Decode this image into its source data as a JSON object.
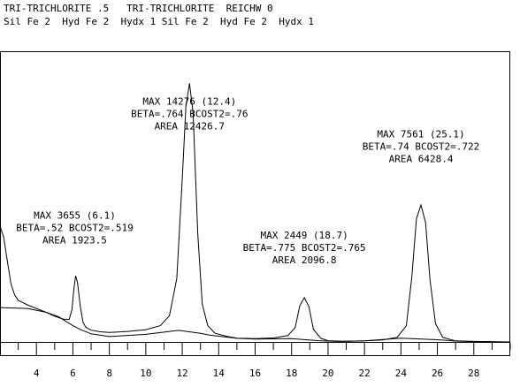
{
  "header": {
    "line1": "TRI-TRICHLORITE .5   TRI-TRICHLORITE  REICHW 0",
    "line2": "Sil Fe 2  Hyd Fe 2  Hydx 1 Sil Fe 2  Hyd Fe 2  Hydx 1"
  },
  "chart_data": {
    "type": "line",
    "xlim": [
      2,
      30
    ],
    "ylim": [
      0,
      16000
    ],
    "x_ticks": [
      4,
      6,
      8,
      10,
      12,
      14,
      16,
      18,
      20,
      22,
      24,
      26,
      28
    ],
    "grid": false,
    "series": [
      {
        "values": [
          [
            2.0,
            6400
          ],
          [
            2.2,
            5800
          ],
          [
            2.4,
            4500
          ],
          [
            2.6,
            3200
          ],
          [
            2.8,
            2600
          ],
          [
            3.0,
            2300
          ],
          [
            3.5,
            2050
          ],
          [
            4.0,
            1850
          ],
          [
            4.5,
            1650
          ],
          [
            5.0,
            1420
          ],
          [
            5.5,
            1250
          ],
          [
            5.8,
            1250
          ],
          [
            5.95,
            1800
          ],
          [
            6.05,
            2900
          ],
          [
            6.15,
            3655
          ],
          [
            6.25,
            3300
          ],
          [
            6.4,
            2000
          ],
          [
            6.55,
            1100
          ],
          [
            6.7,
            820
          ],
          [
            7.0,
            650
          ],
          [
            7.5,
            560
          ],
          [
            8.0,
            520
          ],
          [
            9.0,
            580
          ],
          [
            10.0,
            680
          ],
          [
            10.8,
            900
          ],
          [
            11.3,
            1450
          ],
          [
            11.7,
            3500
          ],
          [
            12.0,
            9000
          ],
          [
            12.2,
            13000
          ],
          [
            12.4,
            14276
          ],
          [
            12.6,
            12600
          ],
          [
            12.85,
            6000
          ],
          [
            13.1,
            2100
          ],
          [
            13.4,
            900
          ],
          [
            13.8,
            480
          ],
          [
            14.5,
            300
          ],
          [
            15.0,
            210
          ],
          [
            16.0,
            180
          ],
          [
            17.0,
            220
          ],
          [
            17.8,
            350
          ],
          [
            18.2,
            800
          ],
          [
            18.45,
            2000
          ],
          [
            18.7,
            2449
          ],
          [
            18.95,
            1950
          ],
          [
            19.2,
            700
          ],
          [
            19.6,
            200
          ],
          [
            20.0,
            70
          ],
          [
            21.0,
            30
          ],
          [
            22.0,
            60
          ],
          [
            23.0,
            110
          ],
          [
            23.8,
            260
          ],
          [
            24.3,
            900
          ],
          [
            24.6,
            3600
          ],
          [
            24.85,
            6800
          ],
          [
            25.1,
            7561
          ],
          [
            25.35,
            6600
          ],
          [
            25.6,
            3400
          ],
          [
            25.9,
            1000
          ],
          [
            26.3,
            250
          ],
          [
            27.0,
            60
          ],
          [
            28.0,
            30
          ],
          [
            30.0,
            0
          ]
        ]
      },
      {
        "values": [
          [
            2.0,
            1900
          ],
          [
            3.5,
            1850
          ],
          [
            4.5,
            1650
          ],
          [
            5.2,
            1400
          ],
          [
            5.6,
            1150
          ],
          [
            6.0,
            900
          ],
          [
            6.5,
            650
          ],
          [
            7.0,
            450
          ],
          [
            8.0,
            300
          ],
          [
            10.0,
            420
          ],
          [
            11.8,
            640
          ],
          [
            13.0,
            480
          ],
          [
            13.5,
            380
          ],
          [
            15.0,
            200
          ],
          [
            16.0,
            160
          ],
          [
            18.0,
            180
          ],
          [
            19.5,
            70
          ],
          [
            20.5,
            30
          ],
          [
            22.0,
            60
          ],
          [
            23.0,
            130
          ],
          [
            24.0,
            210
          ],
          [
            26.0,
            120
          ],
          [
            27.0,
            50
          ],
          [
            28.0,
            20
          ],
          [
            29.0,
            15
          ]
        ]
      }
    ],
    "annotations": [
      {
        "x": 6.1,
        "y": 6800,
        "lines": [
          "MAX 3655 (6.1)",
          "BETA=.52 BCOST2=.519",
          "AREA 1923.5"
        ]
      },
      {
        "x": 12.4,
        "y": 13100,
        "lines": [
          "MAX 14276 (12.4)",
          "BETA=.764 BCOST2=.76",
          "AREA 12426.7"
        ]
      },
      {
        "x": 18.7,
        "y": 5700,
        "lines": [
          "MAX 2449 (18.7)",
          "BETA=.775 BCOST2=.765",
          "AREA 2096.8"
        ]
      },
      {
        "x": 25.1,
        "y": 11300,
        "lines": [
          "MAX 7561 (25.1)",
          "BETA=.74 BCOST2=.722",
          "AREA 6428.4"
        ]
      }
    ]
  }
}
